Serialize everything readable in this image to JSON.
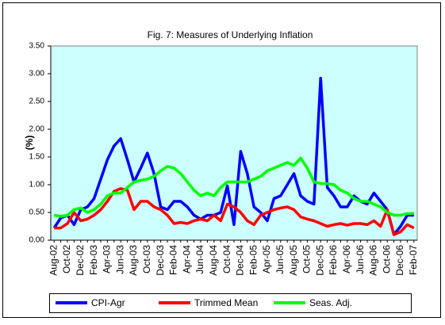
{
  "chart_data": {
    "type": "line",
    "title": "Fig. 7: Measures  of Underlying Inflation",
    "y_label": "(%)",
    "categories": [
      "Aug-02",
      null,
      "Oct-02",
      null,
      "Dec-02",
      null,
      "Feb-03",
      null,
      "Apr-03",
      null,
      "Jun-03",
      null,
      "Aug-03",
      null,
      "Oct-03",
      null,
      "Dec-03",
      null,
      "Feb-04",
      null,
      "Apr-04",
      null,
      "Jun-04",
      null,
      "Aug-04",
      null,
      "Oct-04",
      null,
      "Dec-04",
      null,
      "Feb-05",
      null,
      "Apr-05",
      null,
      "Jun-05",
      null,
      "Aug-05",
      null,
      "Oct-05",
      null,
      "Dec-05",
      null,
      "Feb-06",
      null,
      "Apr-06",
      null,
      "Jun-06",
      null,
      "Aug-06",
      null,
      "Oct-06",
      null,
      "Dec-06",
      null,
      "Feb-07"
    ],
    "series": [
      {
        "name": "CPI-Agr",
        "color": "#0000ff",
        "values": [
          0.22,
          0.4,
          0.45,
          0.28,
          0.55,
          0.6,
          0.75,
          1.1,
          1.45,
          1.7,
          1.83,
          1.45,
          1.05,
          1.3,
          1.57,
          1.2,
          0.6,
          0.55,
          0.7,
          0.7,
          0.6,
          0.45,
          0.38,
          0.45,
          0.45,
          0.5,
          0.98,
          0.28,
          1.6,
          1.2,
          0.6,
          0.5,
          0.35,
          0.75,
          0.8,
          1.0,
          1.2,
          0.8,
          0.7,
          0.65,
          2.92,
          0.95,
          0.8,
          0.6,
          0.6,
          0.8,
          0.7,
          0.65,
          0.85,
          0.7,
          0.55,
          0.1,
          0.25,
          0.45,
          0.45
        ]
      },
      {
        "name": "Trimmed Mean",
        "color": "#ff0000",
        "values": [
          0.22,
          0.22,
          0.3,
          0.5,
          0.35,
          0.38,
          0.45,
          0.55,
          0.7,
          0.88,
          0.93,
          0.9,
          0.55,
          0.7,
          0.7,
          0.6,
          0.55,
          0.45,
          0.3,
          0.32,
          0.3,
          0.35,
          0.38,
          0.35,
          0.45,
          0.35,
          0.65,
          0.6,
          0.5,
          0.35,
          0.28,
          0.45,
          0.5,
          0.55,
          0.58,
          0.6,
          0.55,
          0.42,
          0.38,
          0.35,
          0.3,
          0.25,
          0.28,
          0.3,
          0.27,
          0.3,
          0.3,
          0.28,
          0.35,
          0.25,
          0.55,
          0.1,
          0.15,
          0.28,
          0.22
        ]
      },
      {
        "name": "Seas. Adj.",
        "color": "#00ff00",
        "values": [
          0.45,
          0.43,
          0.45,
          0.55,
          0.58,
          0.5,
          0.55,
          0.65,
          0.8,
          0.85,
          0.85,
          0.95,
          1.05,
          1.08,
          1.1,
          1.15,
          1.25,
          1.33,
          1.3,
          1.2,
          1.05,
          0.9,
          0.8,
          0.85,
          0.8,
          0.95,
          1.05,
          1.05,
          1.05,
          1.05,
          1.1,
          1.15,
          1.25,
          1.3,
          1.35,
          1.4,
          1.35,
          1.48,
          1.3,
          1.05,
          1.02,
          1.02,
          1.0,
          0.9,
          0.85,
          0.75,
          0.7,
          0.7,
          0.65,
          0.6,
          0.5,
          0.45,
          0.45,
          0.48,
          0.48
        ]
      }
    ],
    "ylim": [
      0,
      3.5
    ],
    "yticks": [
      {
        "value": 0,
        "label": "0.00"
      },
      {
        "value": 0.5,
        "label": "0.50"
      },
      {
        "value": 1,
        "label": "1.00"
      },
      {
        "value": 1.5,
        "label": "1.50"
      },
      {
        "value": 2,
        "label": "2.00"
      },
      {
        "value": 2.5,
        "label": "2.50"
      },
      {
        "value": 3,
        "label": "3.00"
      },
      {
        "value": 3.5,
        "label": "3.50"
      }
    ],
    "grid": false,
    "legend": "bottom",
    "background": "#ccffff"
  }
}
